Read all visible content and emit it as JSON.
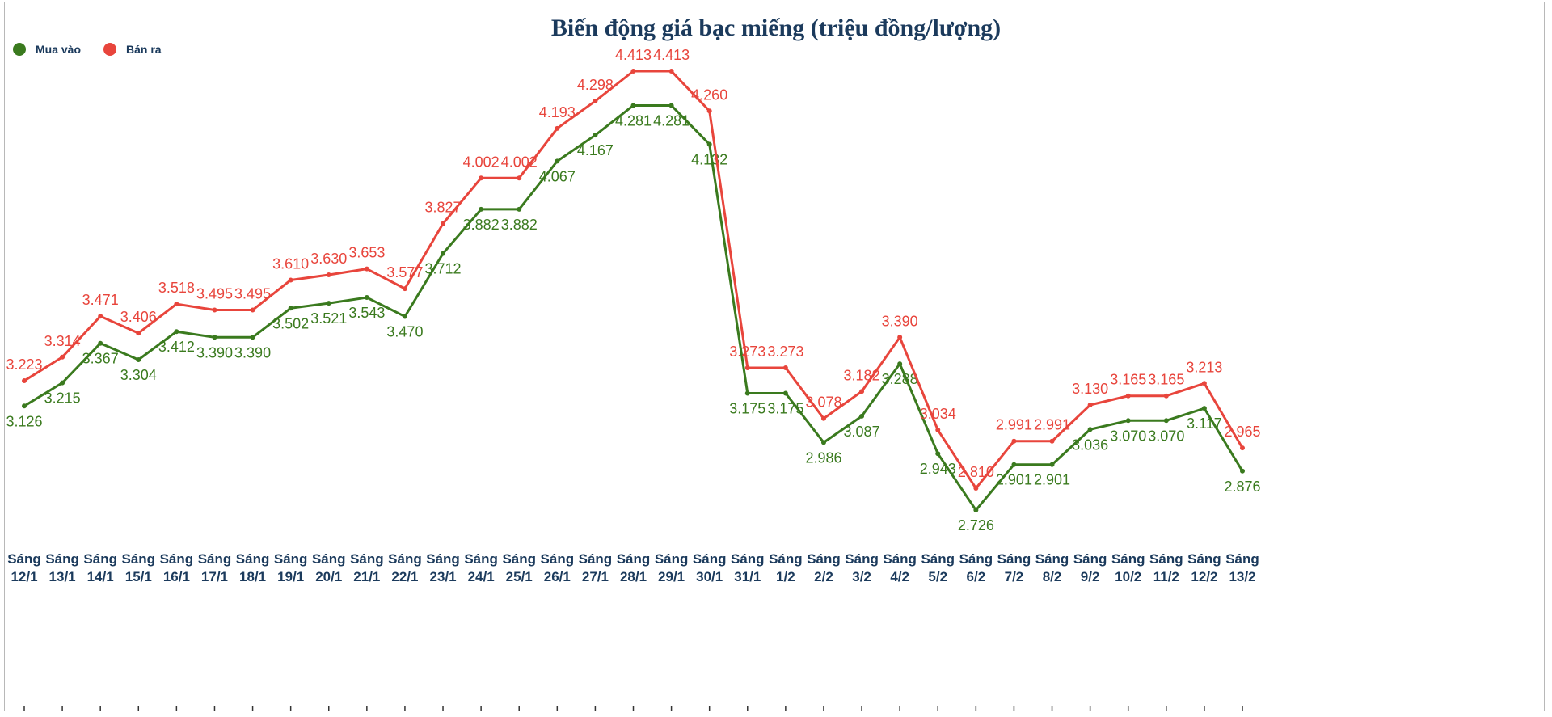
{
  "chart_data": {
    "type": "line",
    "title": "Biến động giá bạc miếng (triệu đồng/lượng)",
    "categories": [
      "Sáng 12/1",
      "Sáng 13/1",
      "Sáng 14/1",
      "Sáng 15/1",
      "Sáng 16/1",
      "Sáng 17/1",
      "Sáng 18/1",
      "Sáng 19/1",
      "Sáng 20/1",
      "Sáng 21/1",
      "Sáng 22/1",
      "Sáng 23/1",
      "Sáng 24/1",
      "Sáng 25/1",
      "Sáng 26/1",
      "Sáng 27/1",
      "Sáng 28/1",
      "Sáng 29/1",
      "Sáng 30/1",
      "Sáng 31/1",
      "Sáng 1/2",
      "Sáng 2/2",
      "Sáng 3/2",
      "Sáng 4/2",
      "Sáng 5/2",
      "Sáng 6/2",
      "Sáng 7/2",
      "Sáng 8/2",
      "Sáng 9/2",
      "Sáng 10/2",
      "Sáng 11/2",
      "Sáng 12/2",
      "Sáng 13/2"
    ],
    "series": [
      {
        "name": "Mua vào",
        "color": "#3a7a1e",
        "values": [
          3.126,
          3.215,
          3.367,
          3.304,
          3.412,
          3.39,
          3.39,
          3.502,
          3.521,
          3.543,
          3.47,
          3.712,
          3.882,
          3.882,
          4.067,
          4.167,
          4.281,
          4.281,
          4.132,
          3.175,
          3.175,
          2.986,
          3.087,
          3.288,
          2.943,
          2.726,
          2.901,
          2.901,
          3.036,
          3.07,
          3.07,
          3.117,
          2.876
        ]
      },
      {
        "name": "Bán ra",
        "color": "#e8453c",
        "values": [
          3.223,
          3.314,
          3.471,
          3.406,
          3.518,
          3.495,
          3.495,
          3.61,
          3.63,
          3.653,
          3.577,
          3.827,
          4.002,
          4.002,
          4.193,
          4.298,
          4.413,
          4.413,
          4.26,
          3.273,
          3.273,
          3.078,
          3.182,
          3.39,
          3.034,
          2.81,
          2.991,
          2.991,
          3.13,
          3.165,
          3.165,
          3.213,
          2.965
        ]
      }
    ],
    "data_labels": true,
    "decimal_separator": ".",
    "legend_position": "top-left",
    "grid": false,
    "ylim": [
      2.6,
      4.5
    ]
  }
}
